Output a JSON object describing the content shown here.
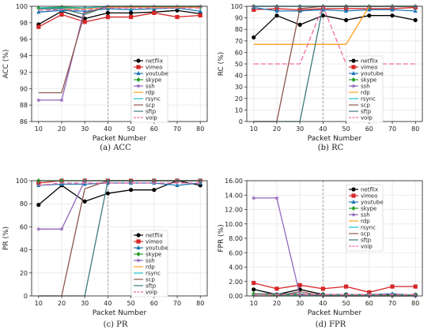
{
  "chart_data": [
    {
      "type": "line",
      "caption": "(a) ACC",
      "xlabel": "Packet Number",
      "ylabel": "ACC (%)",
      "x": [
        10,
        20,
        30,
        40,
        50,
        60,
        70,
        80
      ],
      "xlim": [
        7,
        83
      ],
      "ylim": [
        86,
        100
      ],
      "yticks": [
        86,
        88,
        90,
        92,
        94,
        96,
        98,
        100
      ],
      "ytick_labels": [
        "86",
        "88",
        "90",
        "92",
        "94",
        "96",
        "98",
        "100"
      ],
      "grid": true,
      "vline_x": 40,
      "legend": "bottom-right",
      "series": [
        {
          "name": "netflix",
          "color": "#000000",
          "marker": "circle",
          "dash": "",
          "values": [
            97.8,
            99.4,
            98.5,
            99.2,
            99.2,
            99.3,
            99.5,
            99.1
          ]
        },
        {
          "name": "vimeo",
          "color": "#d62728",
          "marker": "square",
          "dash": "",
          "values": [
            97.5,
            99.0,
            98.1,
            98.7,
            98.7,
            99.2,
            98.7,
            98.9
          ]
        },
        {
          "name": "youtube",
          "color": "#1f77b4",
          "marker": "triangle",
          "dash": "",
          "values": [
            99.3,
            99.5,
            99.4,
            99.7,
            99.6,
            99.7,
            99.8,
            99.4
          ]
        },
        {
          "name": "skype",
          "color": "#2ca02c",
          "marker": "diamond",
          "dash": "",
          "values": [
            99.8,
            99.9,
            99.8,
            99.9,
            99.9,
            99.9,
            99.9,
            99.9
          ]
        },
        {
          "name": "ssh",
          "color": "#9467bd",
          "marker": "star",
          "dash": "",
          "values": [
            88.6,
            88.6,
            99.8,
            100.0,
            100.0,
            100.0,
            100.0,
            100.0
          ]
        },
        {
          "name": "rdp",
          "color": "#ff9f1c",
          "marker": "",
          "dash": "",
          "values": [
            99.7,
            99.7,
            99.7,
            99.9,
            99.9,
            99.9,
            99.9,
            99.9
          ]
        },
        {
          "name": "rsync",
          "color": "#17becf",
          "marker": "",
          "dash": "",
          "values": [
            99.8,
            99.8,
            99.8,
            100.0,
            100.0,
            100.0,
            100.0,
            100.0
          ]
        },
        {
          "name": "scp",
          "color": "#8c564b",
          "marker": "",
          "dash": "",
          "values": [
            89.5,
            89.5,
            99.2,
            100.0,
            100.0,
            100.0,
            100.0,
            100.0
          ]
        },
        {
          "name": "sftp",
          "color": "#3d7a7a",
          "marker": "",
          "dash": "",
          "values": [
            99.7,
            99.7,
            99.0,
            100.0,
            100.0,
            100.0,
            100.0,
            100.0
          ]
        },
        {
          "name": "voip",
          "color": "#f06aa8",
          "marker": "",
          "dash": "6,3",
          "values": [
            99.5,
            99.6,
            99.6,
            99.8,
            99.8,
            99.8,
            99.8,
            99.8
          ]
        }
      ]
    },
    {
      "type": "line",
      "caption": "(b) RC",
      "xlabel": "Packet Number",
      "ylabel": "RC (%)",
      "x": [
        10,
        20,
        30,
        40,
        50,
        60,
        70,
        80
      ],
      "xlim": [
        7,
        83
      ],
      "ylim": [
        0,
        100
      ],
      "yticks": [
        0,
        10,
        20,
        30,
        40,
        50,
        60,
        70,
        80,
        90,
        100
      ],
      "ytick_labels": [
        "0",
        "10",
        "20",
        "30",
        "40",
        "50",
        "60",
        "70",
        "80",
        "90",
        "100"
      ],
      "grid": true,
      "vline_x": 40,
      "legend": "right",
      "series": [
        {
          "name": "netflix",
          "color": "#000000",
          "marker": "circle",
          "dash": "",
          "values": [
            73,
            92,
            84,
            92,
            88,
            92,
            92,
            88
          ]
        },
        {
          "name": "vimeo",
          "color": "#d62728",
          "marker": "square",
          "dash": "",
          "values": [
            97,
            98,
            97,
            98,
            98,
            98,
            98,
            99
          ]
        },
        {
          "name": "youtube",
          "color": "#1f77b4",
          "marker": "triangle",
          "dash": "",
          "values": [
            99,
            96,
            96,
            97,
            96,
            97,
            97,
            96
          ]
        },
        {
          "name": "skype",
          "color": "#2ca02c",
          "marker": "diamond",
          "dash": "",
          "values": [
            100,
            100,
            100,
            100,
            100,
            100,
            100,
            100
          ]
        },
        {
          "name": "ssh",
          "color": "#9467bd",
          "marker": "star",
          "dash": "",
          "values": [
            100,
            100,
            100,
            100,
            100,
            100,
            100,
            100
          ]
        },
        {
          "name": "rdp",
          "color": "#ff9f1c",
          "marker": "",
          "dash": "",
          "values": [
            67,
            67,
            67,
            67,
            67,
            100,
            100,
            100
          ]
        },
        {
          "name": "rsync",
          "color": "#17becf",
          "marker": "",
          "dash": "",
          "values": [
            100,
            100,
            100,
            100,
            100,
            100,
            100,
            100
          ]
        },
        {
          "name": "scp",
          "color": "#8c564b",
          "marker": "",
          "dash": "",
          "values": [
            0,
            0,
            98,
            100,
            100,
            100,
            100,
            100
          ]
        },
        {
          "name": "sftp",
          "color": "#3d7a7a",
          "marker": "",
          "dash": "",
          "values": [
            0,
            0,
            0,
            100,
            100,
            100,
            100,
            100
          ]
        },
        {
          "name": "voip",
          "color": "#f06aa8",
          "marker": "",
          "dash": "6,3",
          "values": [
            50,
            50,
            50,
            100,
            50,
            50,
            50,
            50
          ]
        }
      ]
    },
    {
      "type": "line",
      "caption": "(c) PR",
      "xlabel": "Packet Number",
      "ylabel": "PR (%)",
      "x": [
        10,
        20,
        30,
        40,
        50,
        60,
        70,
        80
      ],
      "xlim": [
        7,
        83
      ],
      "ylim": [
        0,
        100
      ],
      "yticks": [
        0,
        20,
        40,
        60,
        80,
        100
      ],
      "ytick_labels": [
        "0",
        "20",
        "40",
        "60",
        "80",
        "100"
      ],
      "grid": true,
      "vline_x": 40,
      "legend": "bottom-right",
      "series": [
        {
          "name": "netflix",
          "color": "#000000",
          "marker": "circle",
          "dash": "",
          "values": [
            79,
            96,
            82,
            89,
            92,
            92,
            100,
            96
          ]
        },
        {
          "name": "vimeo",
          "color": "#d62728",
          "marker": "square",
          "dash": "",
          "values": [
            98,
            100,
            100,
            100,
            100,
            100,
            100,
            100
          ]
        },
        {
          "name": "youtube",
          "color": "#1f77b4",
          "marker": "triangle",
          "dash": "",
          "values": [
            96,
            97,
            97,
            98,
            98,
            98,
            96,
            98
          ]
        },
        {
          "name": "skype",
          "color": "#2ca02c",
          "marker": "diamond",
          "dash": "",
          "values": [
            100,
            100,
            100,
            100,
            100,
            100,
            100,
            100
          ]
        },
        {
          "name": "ssh",
          "color": "#9467bd",
          "marker": "star",
          "dash": "",
          "values": [
            58,
            58,
            100,
            100,
            100,
            100,
            100,
            100
          ]
        },
        {
          "name": "rdp",
          "color": "#ff9f1c",
          "marker": "",
          "dash": "",
          "values": [
            100,
            100,
            100,
            100,
            100,
            100,
            100,
            100
          ]
        },
        {
          "name": "rsync",
          "color": "#17becf",
          "marker": "",
          "dash": "",
          "values": [
            100,
            100,
            100,
            100,
            100,
            100,
            100,
            100
          ]
        },
        {
          "name": "scp",
          "color": "#8c564b",
          "marker": "",
          "dash": "",
          "values": [
            0,
            0,
            93,
            100,
            100,
            100,
            100,
            100
          ]
        },
        {
          "name": "sftp",
          "color": "#3d7a7a",
          "marker": "",
          "dash": "",
          "values": [
            0,
            0,
            0,
            100,
            100,
            100,
            100,
            100
          ]
        },
        {
          "name": "voip",
          "color": "#f06aa8",
          "marker": "",
          "dash": "6,3",
          "values": [
            96,
            98,
            98,
            98,
            98,
            98,
            98,
            98
          ]
        }
      ]
    },
    {
      "type": "line",
      "caption": "(d) FPR",
      "xlabel": "Packet Number",
      "ylabel": "FPR (%)",
      "x": [
        10,
        20,
        30,
        40,
        50,
        60,
        70,
        80
      ],
      "xlim": [
        7,
        83
      ],
      "ylim": [
        0,
        16
      ],
      "yticks": [
        0,
        2,
        4,
        6,
        8,
        10,
        12,
        14,
        16
      ],
      "ytick_labels": [
        "0.00",
        "2.00",
        "4.00",
        "6.00",
        "8.00",
        "10.00",
        "12.00",
        "14.00",
        "16.00"
      ],
      "grid": true,
      "vline_x": 40,
      "legend": "top-right",
      "series": [
        {
          "name": "netflix",
          "color": "#000000",
          "marker": "circle",
          "dash": "",
          "values": [
            0.9,
            0.2,
            0.9,
            0.2,
            0.2,
            0.2,
            0.15,
            0.15
          ]
        },
        {
          "name": "vimeo",
          "color": "#d62728",
          "marker": "square",
          "dash": "",
          "values": [
            1.8,
            1.0,
            1.5,
            1.0,
            1.3,
            0.5,
            1.3,
            1.3
          ]
        },
        {
          "name": "youtube",
          "color": "#1f77b4",
          "marker": "triangle",
          "dash": "",
          "values": [
            0.3,
            0.2,
            0.2,
            0.2,
            0.2,
            0.2,
            0.3,
            0.1
          ]
        },
        {
          "name": "skype",
          "color": "#2ca02c",
          "marker": "diamond",
          "dash": "",
          "values": [
            0.3,
            0.1,
            0.1,
            0.1,
            0.1,
            0.1,
            0.1,
            0.1
          ]
        },
        {
          "name": "ssh",
          "color": "#9467bd",
          "marker": "star",
          "dash": "",
          "values": [
            13.6,
            13.6,
            0.1,
            0,
            0,
            0,
            0,
            0
          ]
        },
        {
          "name": "rdp",
          "color": "#ff9f1c",
          "marker": "",
          "dash": "",
          "values": [
            0,
            0,
            0,
            0,
            0,
            0,
            0,
            0
          ]
        },
        {
          "name": "rsync",
          "color": "#17becf",
          "marker": "",
          "dash": "",
          "values": [
            0,
            0,
            0,
            0,
            0,
            0,
            0,
            0
          ]
        },
        {
          "name": "scp",
          "color": "#8c564b",
          "marker": "",
          "dash": "",
          "values": [
            0,
            0,
            0.6,
            0,
            0,
            0,
            0,
            0
          ]
        },
        {
          "name": "sftp",
          "color": "#3d7a7a",
          "marker": "",
          "dash": "",
          "values": [
            0.3,
            0.3,
            0.3,
            0,
            0,
            0,
            0,
            0
          ]
        },
        {
          "name": "voip",
          "color": "#f06aa8",
          "marker": "",
          "dash": "6,3",
          "values": [
            0.2,
            0.2,
            0.2,
            0.2,
            0.2,
            0.2,
            0.2,
            0.2
          ]
        }
      ]
    }
  ]
}
